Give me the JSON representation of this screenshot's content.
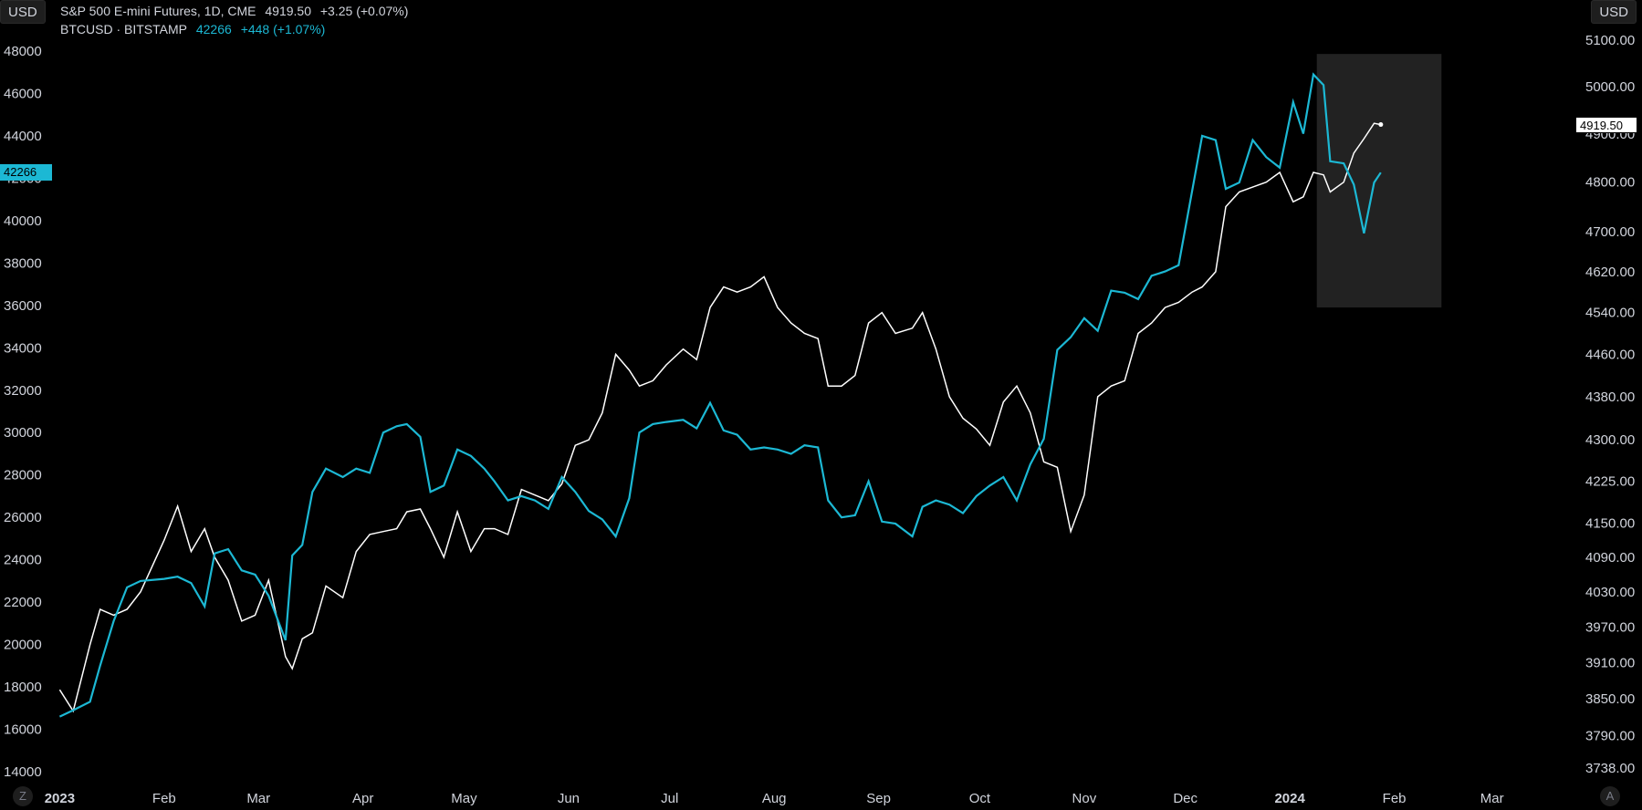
{
  "header": {
    "unit_left": "USD",
    "unit_right": "USD",
    "spx_legend": {
      "name": "S&P 500 E-mini Futures, 1D, CME",
      "price": "4919.50",
      "change": "+3.25 (+0.07%)"
    },
    "btc_legend": {
      "name": "BTCUSD · BITSTAMP",
      "price": "42266",
      "change": "+448 (+1.07%)"
    }
  },
  "footer": {
    "left_button": "Z",
    "right_button": "A"
  },
  "price_tags": {
    "btc_last": "42266",
    "spx_last": "4919.50"
  },
  "colors": {
    "btc": "#1cb8d4",
    "spx": "#ffffff",
    "background": "#000000",
    "highlight": "#222222",
    "text": "#d1d4dc"
  },
  "chart_data": {
    "type": "line",
    "x_axis": {
      "ticks": [
        {
          "label": "2023",
          "date": "2023-01-01",
          "bold": true
        },
        {
          "label": "Feb",
          "date": "2023-02-01"
        },
        {
          "label": "Mar",
          "date": "2023-03-01"
        },
        {
          "label": "Apr",
          "date": "2023-04-01"
        },
        {
          "label": "May",
          "date": "2023-05-01"
        },
        {
          "label": "Jun",
          "date": "2023-06-01"
        },
        {
          "label": "Jul",
          "date": "2023-07-01"
        },
        {
          "label": "Aug",
          "date": "2023-08-01"
        },
        {
          "label": "Sep",
          "date": "2023-09-01"
        },
        {
          "label": "Oct",
          "date": "2023-10-01"
        },
        {
          "label": "Nov",
          "date": "2023-11-01"
        },
        {
          "label": "Dec",
          "date": "2023-12-01"
        },
        {
          "label": "2024",
          "date": "2024-01-01",
          "bold": true
        },
        {
          "label": "Feb",
          "date": "2024-02-01"
        },
        {
          "label": "Mar",
          "date": "2024-03-01"
        }
      ],
      "range": [
        "2022-12-30",
        "2024-03-26"
      ]
    },
    "y_left": {
      "ticks": [
        "48000",
        "46000",
        "44000",
        "42000",
        "40000",
        "38000",
        "36000",
        "34000",
        "32000",
        "30000",
        "28000",
        "26000",
        "24000",
        "22000",
        "20000",
        "18000",
        "16000",
        "14000"
      ],
      "range": [
        14000,
        48000
      ]
    },
    "y_right": {
      "ticks": [
        "5100.00",
        "5000.00",
        "4900.00",
        "4800.00",
        "4700.00",
        "4620.00",
        "4540.00",
        "4460.00",
        "4380.00",
        "4300.00",
        "4225.00",
        "4150.00",
        "4090.00",
        "4030.00",
        "3970.00",
        "3910.00",
        "3850.00",
        "3790.00",
        "3738.00"
      ],
      "scale": "log",
      "range": [
        3738,
        5100
      ]
    },
    "highlight": {
      "from": "2024-01-09",
      "to": "2024-02-15",
      "y_from": 4550,
      "y_to": 5070
    },
    "series": [
      {
        "name": "BTCUSD · BITSTAMP",
        "axis": "left",
        "points": [
          [
            "2023-01-01",
            16600
          ],
          [
            "2023-01-05",
            16900
          ],
          [
            "2023-01-10",
            17300
          ],
          [
            "2023-01-13",
            19000
          ],
          [
            "2023-01-17",
            21100
          ],
          [
            "2023-01-21",
            22700
          ],
          [
            "2023-01-25",
            23000
          ],
          [
            "2023-02-01",
            23100
          ],
          [
            "2023-02-05",
            23200
          ],
          [
            "2023-02-09",
            22900
          ],
          [
            "2023-02-13",
            21800
          ],
          [
            "2023-02-16",
            24300
          ],
          [
            "2023-02-20",
            24500
          ],
          [
            "2023-02-24",
            23500
          ],
          [
            "2023-02-28",
            23300
          ],
          [
            "2023-03-04",
            22300
          ],
          [
            "2023-03-09",
            20200
          ],
          [
            "2023-03-11",
            24200
          ],
          [
            "2023-03-14",
            24700
          ],
          [
            "2023-03-17",
            27200
          ],
          [
            "2023-03-21",
            28300
          ],
          [
            "2023-03-26",
            27900
          ],
          [
            "2023-03-30",
            28300
          ],
          [
            "2023-04-03",
            28100
          ],
          [
            "2023-04-07",
            30000
          ],
          [
            "2023-04-11",
            30300
          ],
          [
            "2023-04-14",
            30400
          ],
          [
            "2023-04-18",
            29800
          ],
          [
            "2023-04-21",
            27200
          ],
          [
            "2023-04-25",
            27500
          ],
          [
            "2023-04-29",
            29200
          ],
          [
            "2023-05-03",
            28900
          ],
          [
            "2023-05-07",
            28300
          ],
          [
            "2023-05-10",
            27700
          ],
          [
            "2023-05-14",
            26800
          ],
          [
            "2023-05-18",
            27000
          ],
          [
            "2023-05-22",
            26800
          ],
          [
            "2023-05-26",
            26400
          ],
          [
            "2023-05-30",
            27900
          ],
          [
            "2023-06-03",
            27200
          ],
          [
            "2023-06-07",
            26300
          ],
          [
            "2023-06-11",
            25900
          ],
          [
            "2023-06-15",
            25100
          ],
          [
            "2023-06-19",
            26900
          ],
          [
            "2023-06-22",
            30000
          ],
          [
            "2023-06-26",
            30400
          ],
          [
            "2023-06-30",
            30500
          ],
          [
            "2023-07-05",
            30600
          ],
          [
            "2023-07-09",
            30200
          ],
          [
            "2023-07-13",
            31400
          ],
          [
            "2023-07-17",
            30100
          ],
          [
            "2023-07-21",
            29900
          ],
          [
            "2023-07-25",
            29200
          ],
          [
            "2023-07-29",
            29300
          ],
          [
            "2023-08-02",
            29200
          ],
          [
            "2023-08-06",
            29000
          ],
          [
            "2023-08-10",
            29400
          ],
          [
            "2023-08-14",
            29300
          ],
          [
            "2023-08-17",
            26800
          ],
          [
            "2023-08-21",
            26000
          ],
          [
            "2023-08-25",
            26100
          ],
          [
            "2023-08-29",
            27700
          ],
          [
            "2023-09-02",
            25800
          ],
          [
            "2023-09-06",
            25700
          ],
          [
            "2023-09-11",
            25100
          ],
          [
            "2023-09-14",
            26500
          ],
          [
            "2023-09-18",
            26800
          ],
          [
            "2023-09-22",
            26600
          ],
          [
            "2023-09-26",
            26200
          ],
          [
            "2023-09-30",
            27000
          ],
          [
            "2023-10-04",
            27500
          ],
          [
            "2023-10-08",
            27900
          ],
          [
            "2023-10-12",
            26800
          ],
          [
            "2023-10-16",
            28500
          ],
          [
            "2023-10-20",
            29700
          ],
          [
            "2023-10-24",
            33900
          ],
          [
            "2023-10-28",
            34500
          ],
          [
            "2023-11-01",
            35400
          ],
          [
            "2023-11-05",
            34800
          ],
          [
            "2023-11-09",
            36700
          ],
          [
            "2023-11-13",
            36600
          ],
          [
            "2023-11-17",
            36300
          ],
          [
            "2023-11-21",
            37400
          ],
          [
            "2023-11-25",
            37600
          ],
          [
            "2023-11-29",
            37900
          ],
          [
            "2023-12-03",
            41400
          ],
          [
            "2023-12-06",
            44000
          ],
          [
            "2023-12-10",
            43800
          ],
          [
            "2023-12-13",
            41500
          ],
          [
            "2023-12-17",
            41800
          ],
          [
            "2023-12-21",
            43800
          ],
          [
            "2023-12-25",
            43000
          ],
          [
            "2023-12-29",
            42500
          ],
          [
            "2024-01-02",
            45600
          ],
          [
            "2024-01-05",
            44100
          ],
          [
            "2024-01-08",
            46900
          ],
          [
            "2024-01-11",
            46400
          ],
          [
            "2024-01-13",
            42800
          ],
          [
            "2024-01-17",
            42700
          ],
          [
            "2024-01-20",
            41700
          ],
          [
            "2024-01-23",
            39400
          ],
          [
            "2024-01-26",
            41800
          ],
          [
            "2024-01-28",
            42266
          ]
        ]
      },
      {
        "name": "S&P 500 E-mini Futures, 1D, CME",
        "axis": "right",
        "points": [
          [
            "2023-01-01",
            3865
          ],
          [
            "2023-01-05",
            3830
          ],
          [
            "2023-01-10",
            3940
          ],
          [
            "2023-01-13",
            4000
          ],
          [
            "2023-01-17",
            3990
          ],
          [
            "2023-01-21",
            4000
          ],
          [
            "2023-01-25",
            4030
          ],
          [
            "2023-02-01",
            4120
          ],
          [
            "2023-02-05",
            4180
          ],
          [
            "2023-02-09",
            4100
          ],
          [
            "2023-02-13",
            4140
          ],
          [
            "2023-02-16",
            4090
          ],
          [
            "2023-02-20",
            4050
          ],
          [
            "2023-02-24",
            3980
          ],
          [
            "2023-02-28",
            3990
          ],
          [
            "2023-03-04",
            4050
          ],
          [
            "2023-03-09",
            3920
          ],
          [
            "2023-03-11",
            3900
          ],
          [
            "2023-03-14",
            3950
          ],
          [
            "2023-03-17",
            3960
          ],
          [
            "2023-03-21",
            4040
          ],
          [
            "2023-03-26",
            4020
          ],
          [
            "2023-03-30",
            4100
          ],
          [
            "2023-04-03",
            4130
          ],
          [
            "2023-04-07",
            4135
          ],
          [
            "2023-04-11",
            4140
          ],
          [
            "2023-04-14",
            4170
          ],
          [
            "2023-04-18",
            4175
          ],
          [
            "2023-04-21",
            4140
          ],
          [
            "2023-04-25",
            4090
          ],
          [
            "2023-04-29",
            4170
          ],
          [
            "2023-05-03",
            4100
          ],
          [
            "2023-05-07",
            4140
          ],
          [
            "2023-05-10",
            4140
          ],
          [
            "2023-05-14",
            4130
          ],
          [
            "2023-05-18",
            4210
          ],
          [
            "2023-05-22",
            4200
          ],
          [
            "2023-05-26",
            4190
          ],
          [
            "2023-05-30",
            4220
          ],
          [
            "2023-06-03",
            4290
          ],
          [
            "2023-06-07",
            4300
          ],
          [
            "2023-06-11",
            4350
          ],
          [
            "2023-06-15",
            4460
          ],
          [
            "2023-06-19",
            4430
          ],
          [
            "2023-06-22",
            4400
          ],
          [
            "2023-06-26",
            4410
          ],
          [
            "2023-06-30",
            4440
          ],
          [
            "2023-07-05",
            4470
          ],
          [
            "2023-07-09",
            4450
          ],
          [
            "2023-07-13",
            4550
          ],
          [
            "2023-07-17",
            4590
          ],
          [
            "2023-07-21",
            4580
          ],
          [
            "2023-07-25",
            4590
          ],
          [
            "2023-07-29",
            4610
          ],
          [
            "2023-08-02",
            4550
          ],
          [
            "2023-08-06",
            4520
          ],
          [
            "2023-08-10",
            4500
          ],
          [
            "2023-08-14",
            4490
          ],
          [
            "2023-08-17",
            4400
          ],
          [
            "2023-08-21",
            4400
          ],
          [
            "2023-08-25",
            4420
          ],
          [
            "2023-08-29",
            4520
          ],
          [
            "2023-09-02",
            4540
          ],
          [
            "2023-09-06",
            4500
          ],
          [
            "2023-09-11",
            4510
          ],
          [
            "2023-09-14",
            4540
          ],
          [
            "2023-09-18",
            4470
          ],
          [
            "2023-09-22",
            4380
          ],
          [
            "2023-09-26",
            4340
          ],
          [
            "2023-09-30",
            4320
          ],
          [
            "2023-10-04",
            4290
          ],
          [
            "2023-10-08",
            4370
          ],
          [
            "2023-10-12",
            4400
          ],
          [
            "2023-10-16",
            4350
          ],
          [
            "2023-10-20",
            4260
          ],
          [
            "2023-10-24",
            4250
          ],
          [
            "2023-10-28",
            4135
          ],
          [
            "2023-11-01",
            4200
          ],
          [
            "2023-11-05",
            4380
          ],
          [
            "2023-11-09",
            4400
          ],
          [
            "2023-11-13",
            4410
          ],
          [
            "2023-11-17",
            4500
          ],
          [
            "2023-11-21",
            4520
          ],
          [
            "2023-11-25",
            4550
          ],
          [
            "2023-11-29",
            4560
          ],
          [
            "2023-12-03",
            4580
          ],
          [
            "2023-12-06",
            4590
          ],
          [
            "2023-12-10",
            4620
          ],
          [
            "2023-12-13",
            4750
          ],
          [
            "2023-12-17",
            4780
          ],
          [
            "2023-12-21",
            4790
          ],
          [
            "2023-12-25",
            4800
          ],
          [
            "2023-12-29",
            4820
          ],
          [
            "2024-01-02",
            4760
          ],
          [
            "2024-01-05",
            4770
          ],
          [
            "2024-01-08",
            4820
          ],
          [
            "2024-01-11",
            4815
          ],
          [
            "2024-01-13",
            4780
          ],
          [
            "2024-01-17",
            4800
          ],
          [
            "2024-01-20",
            4860
          ],
          [
            "2024-01-23",
            4890
          ],
          [
            "2024-01-26",
            4922
          ],
          [
            "2024-01-28",
            4919.5
          ]
        ]
      }
    ]
  }
}
